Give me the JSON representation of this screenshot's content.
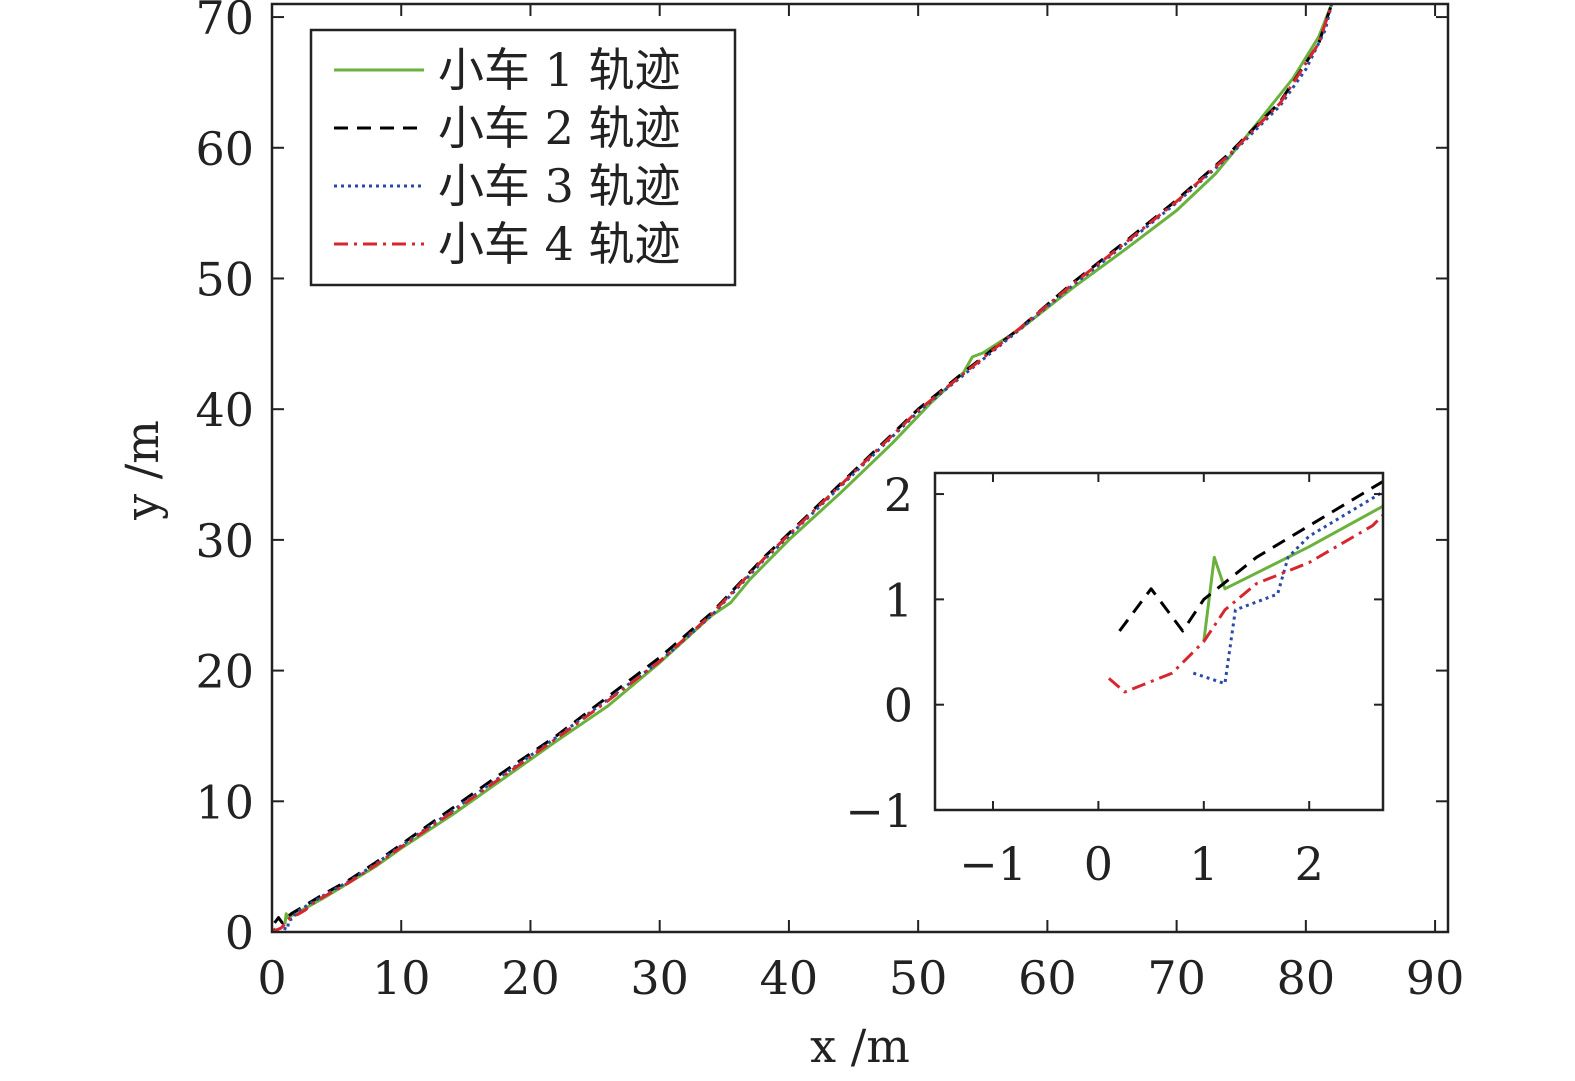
{
  "chart_data": [
    {
      "id": "main",
      "type": "line",
      "xlabel": "x /m",
      "ylabel": "y /m",
      "xlim": [
        0,
        91
      ],
      "ylim": [
        0,
        71
      ],
      "xticks": [
        0,
        10,
        20,
        30,
        40,
        50,
        60,
        70,
        80,
        90
      ],
      "yticks": [
        0,
        10,
        20,
        30,
        40,
        50,
        60,
        70
      ],
      "grid": false,
      "legend_position": "top-left",
      "series": [
        {
          "name": "小车 1 轨迹",
          "color": "#6ab23d",
          "dash": "solid",
          "points": [
            [
              1,
              0.6
            ],
            [
              1.1,
              1.4
            ],
            [
              1.2,
              1.1
            ],
            [
              2,
              1.5
            ],
            [
              4,
              2.6
            ],
            [
              6,
              3.8
            ],
            [
              8,
              5
            ],
            [
              10,
              6.4
            ],
            [
              14,
              9
            ],
            [
              18,
              11.8
            ],
            [
              22,
              14.6
            ],
            [
              26,
              17.3
            ],
            [
              30,
              20.6
            ],
            [
              34,
              24.2
            ],
            [
              35.5,
              25.2
            ],
            [
              37,
              27
            ],
            [
              40,
              30
            ],
            [
              44,
              33.6
            ],
            [
              48,
              37.4
            ],
            [
              51,
              40.5
            ],
            [
              53.5,
              42.8
            ],
            [
              54.2,
              44
            ],
            [
              55,
              44.3
            ],
            [
              58,
              46.2
            ],
            [
              62,
              49.3
            ],
            [
              66,
              52.2
            ],
            [
              70,
              55.2
            ],
            [
              73,
              58
            ],
            [
              76,
              61.6
            ],
            [
              79,
              65.3
            ],
            [
              81,
              68.5
            ],
            [
              82,
              71
            ]
          ]
        },
        {
          "name": "小车 2 轨迹",
          "color": "#000000",
          "dash": "dashed",
          "points": [
            [
              0.2,
              0.7
            ],
            [
              0.5,
              1.1
            ],
            [
              0.8,
              0.7
            ],
            [
              1,
              1
            ],
            [
              1.5,
              1.4
            ],
            [
              2.5,
              2
            ],
            [
              4,
              2.9
            ],
            [
              6,
              4
            ],
            [
              8,
              5.3
            ],
            [
              10,
              6.7
            ],
            [
              14,
              9.5
            ],
            [
              18,
              12.3
            ],
            [
              22,
              15
            ],
            [
              26,
              18
            ],
            [
              30,
              21
            ],
            [
              34,
              24.4
            ],
            [
              38,
              28.6
            ],
            [
              42,
              32.4
            ],
            [
              46,
              36.2
            ],
            [
              50,
              40
            ],
            [
              54,
              43.2
            ],
            [
              58,
              46.3
            ],
            [
              62,
              49.7
            ],
            [
              66,
              52.8
            ],
            [
              70,
              56
            ],
            [
              74,
              59.5
            ],
            [
              78,
              63.5
            ],
            [
              81,
              68
            ],
            [
              82,
              71
            ]
          ]
        },
        {
          "name": "小车 3 轨迹",
          "color": "#2b4aa6",
          "dash": "dotted",
          "points": [
            [
              0.9,
              0.3
            ],
            [
              1.2,
              0.2
            ],
            [
              1.3,
              0.9
            ],
            [
              1.7,
              1.05
            ],
            [
              1.8,
              1.4
            ],
            [
              2,
              1.6
            ],
            [
              2.5,
              1.9
            ],
            [
              4,
              2.8
            ],
            [
              6,
              3.9
            ],
            [
              8,
              5.2
            ],
            [
              10,
              6.6
            ],
            [
              14,
              9.3
            ],
            [
              18,
              12.1
            ],
            [
              22,
              14.9
            ],
            [
              26,
              17.8
            ],
            [
              30,
              20.7
            ],
            [
              34,
              24.2
            ],
            [
              38,
              28.4
            ],
            [
              42,
              32.2
            ],
            [
              46,
              36
            ],
            [
              50,
              39.8
            ],
            [
              54,
              43
            ],
            [
              58,
              46.2
            ],
            [
              62,
              49.5
            ],
            [
              66,
              52.6
            ],
            [
              70,
              55.8
            ],
            [
              74,
              59.3
            ],
            [
              78,
              63.2
            ],
            [
              80,
              66
            ],
            [
              81.5,
              69
            ],
            [
              82,
              71
            ]
          ]
        },
        {
          "name": "小车 4 轨迹",
          "color": "#d6262e",
          "dash": "dashdot",
          "points": [
            [
              0.1,
              0.25
            ],
            [
              0.25,
              0.12
            ],
            [
              0.7,
              0.3
            ],
            [
              1,
              0.6
            ],
            [
              1.2,
              0.9
            ],
            [
              1.5,
              1.15
            ],
            [
              2,
              1.35
            ],
            [
              2.6,
              1.7
            ],
            [
              3,
              2.1
            ],
            [
              4,
              2.7
            ],
            [
              6,
              3.8
            ],
            [
              8,
              5.1
            ],
            [
              10,
              6.5
            ],
            [
              14,
              9.2
            ],
            [
              18,
              12
            ],
            [
              22,
              14.8
            ],
            [
              26,
              17.7
            ],
            [
              30,
              20.7
            ],
            [
              34,
              24.3
            ],
            [
              38,
              28.5
            ],
            [
              42,
              32.3
            ],
            [
              46,
              36.1
            ],
            [
              50,
              39.9
            ],
            [
              54,
              43.1
            ],
            [
              58,
              46.3
            ],
            [
              62,
              49.6
            ],
            [
              66,
              52.7
            ],
            [
              70,
              55.9
            ],
            [
              74,
              59.4
            ],
            [
              78,
              63.4
            ],
            [
              81,
              68
            ],
            [
              82,
              71
            ]
          ]
        }
      ]
    },
    {
      "id": "inset",
      "type": "line",
      "xlim": [
        -1.55,
        2.7
      ],
      "ylim": [
        -1,
        2.2
      ],
      "xticks": [
        -1,
        0,
        1,
        2
      ],
      "yticks": [
        -1,
        0,
        1,
        2
      ],
      "xtick_labels": [
        "−1",
        "0",
        "1",
        "2"
      ],
      "ytick_labels": [
        "−1",
        "0",
        "1",
        "2"
      ],
      "grid": false
    }
  ]
}
